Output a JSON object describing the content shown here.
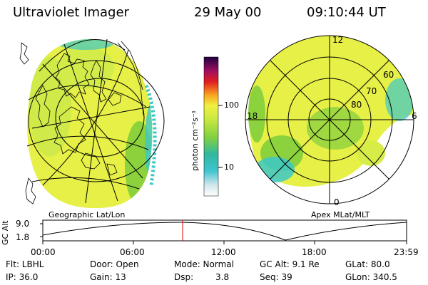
{
  "header": {
    "title": "Ultraviolet Imager",
    "date": "29 May 00",
    "time": "09:10:44 UT"
  },
  "panels": {
    "left_label": "Geographic Lat/Lon",
    "right_label": "Apex MLat/MLT"
  },
  "polar_plot": {
    "mlt_labels": {
      "top": "12",
      "left": "18",
      "right": "6",
      "bottom": "0"
    },
    "lat_labels": [
      "60",
      "70",
      "80"
    ]
  },
  "colorbar": {
    "unit": "photon cm⁻²s⁻¹",
    "ticks": [
      "100",
      "10"
    ],
    "scale": "log"
  },
  "timeline": {
    "ylabel": "GC Alt",
    "y_ticks": [
      "9.0",
      "1.8"
    ],
    "x_ticks": [
      "00:00",
      "06:00",
      "12:00",
      "18:00",
      "23:59"
    ],
    "marker_time": "09:10"
  },
  "footer": {
    "row1": {
      "flt": "Flt: LBHL",
      "door": "Door: Open",
      "mode": "Mode: Normal",
      "gcalt": "GC Alt: 9.1 Re",
      "glat": "GLat: 80.0"
    },
    "row2": {
      "ip": "IP: 36.0",
      "gain": "Gain: 13",
      "dsp_label": "Dsp:",
      "dsp_value": "3.8",
      "seq": "Seq: 39",
      "glon": "GLon: 340.5"
    }
  },
  "colors": {
    "aurora_yellow": "#e6f046",
    "aurora_green": "#8cd23c",
    "aurora_cyan": "#3cc8c8",
    "marker_red": "#e00000"
  }
}
